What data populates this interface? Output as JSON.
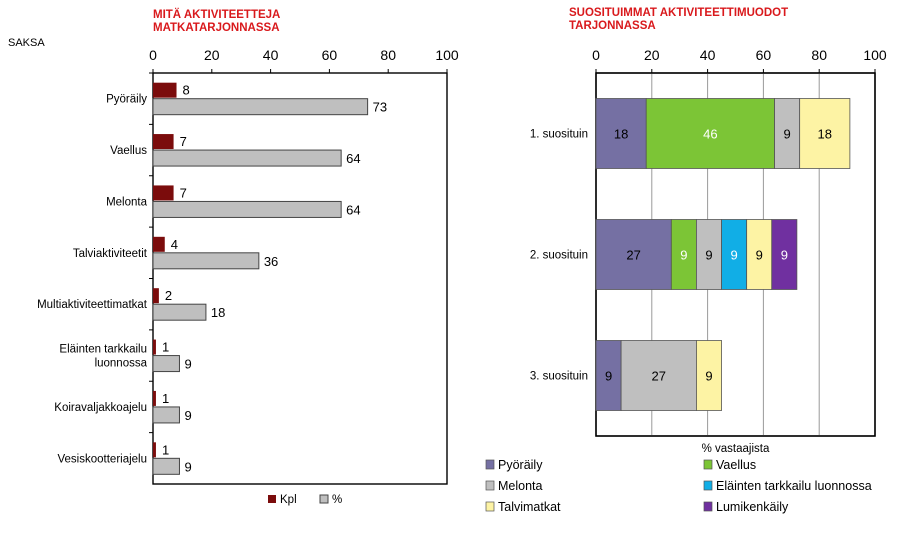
{
  "country_label": "SAKSA",
  "colors": {
    "kpl": "#7b0c0c",
    "percent": "#bfbfbf",
    "Pyöräily": "#7570a3",
    "Vaellus": "#7cc536",
    "Melonta": "#bfbfbf",
    "Eläinten tarkkailu luonnossa": "#11aee6",
    "Talvimatkat": "#fdf3a4",
    "Lumikenkäily": "#7030a0"
  },
  "chart_data": [
    {
      "type": "bar",
      "orientation": "horizontal",
      "title_lines": [
        "MITÄ AKTIVITEETTEJA",
        "MATKATARJONNASSA"
      ],
      "category_lines": [
        [
          "Pyöräily"
        ],
        [
          "Vaellus"
        ],
        [
          "Melonta"
        ],
        [
          "Talviaktiviteetit"
        ],
        [
          "Multiaktiviteettimatkat"
        ],
        [
          "Eläinten tarkkailu",
          "luonnossa"
        ],
        [
          "Koiravaljakkoajelu"
        ],
        [
          "Vesiskootteriajelu"
        ]
      ],
      "series": [
        {
          "name": "Kpl",
          "values": [
            8,
            7,
            7,
            4,
            2,
            1,
            1,
            1
          ]
        },
        {
          "name": "%",
          "values": [
            73,
            64,
            64,
            36,
            18,
            9,
            9,
            9
          ]
        }
      ],
      "xlim": [
        0,
        100
      ],
      "xticks": [
        0,
        20,
        40,
        60,
        80,
        100
      ],
      "xaxis_position": "top",
      "grid": false,
      "legend_position": "bottom"
    },
    {
      "type": "bar",
      "orientation": "horizontal",
      "stacked": true,
      "title_lines": [
        "SUOSITUIMMAT AKTIVITEETTIMUODOT",
        "TARJONNASSA"
      ],
      "categories": [
        "1. suosituin",
        "2. suosituin",
        "3. suosituin"
      ],
      "xlabel": "% vastaajista",
      "xlim": [
        0,
        100
      ],
      "xticks": [
        0,
        20,
        40,
        60,
        80,
        100
      ],
      "xaxis_position": "top",
      "grid": true,
      "segments": [
        [
          {
            "series": "Pyöräily",
            "value": 18
          },
          {
            "series": "Vaellus",
            "value": 46
          },
          {
            "series": "Melonta",
            "value": 9
          },
          {
            "series": "Talvimatkat",
            "value": 18
          }
        ],
        [
          {
            "series": "Pyöräily",
            "value": 27
          },
          {
            "series": "Vaellus",
            "value": 9
          },
          {
            "series": "Melonta",
            "value": 9
          },
          {
            "series": "Eläinten tarkkailu luonnossa",
            "value": 9
          },
          {
            "series": "Talvimatkat",
            "value": 9
          },
          {
            "series": "Lumikenkäily",
            "value": 9
          }
        ],
        [
          {
            "series": "Pyöräily",
            "value": 9
          },
          {
            "series": "Melonta",
            "value": 27
          },
          {
            "series": "Talvimatkat",
            "value": 9
          }
        ]
      ],
      "legend": [
        "Pyöräily",
        "Vaellus",
        "Melonta",
        "Eläinten tarkkailu luonnossa",
        "Talvimatkat",
        "Lumikenkäily"
      ],
      "legend_position": "bottom"
    }
  ]
}
